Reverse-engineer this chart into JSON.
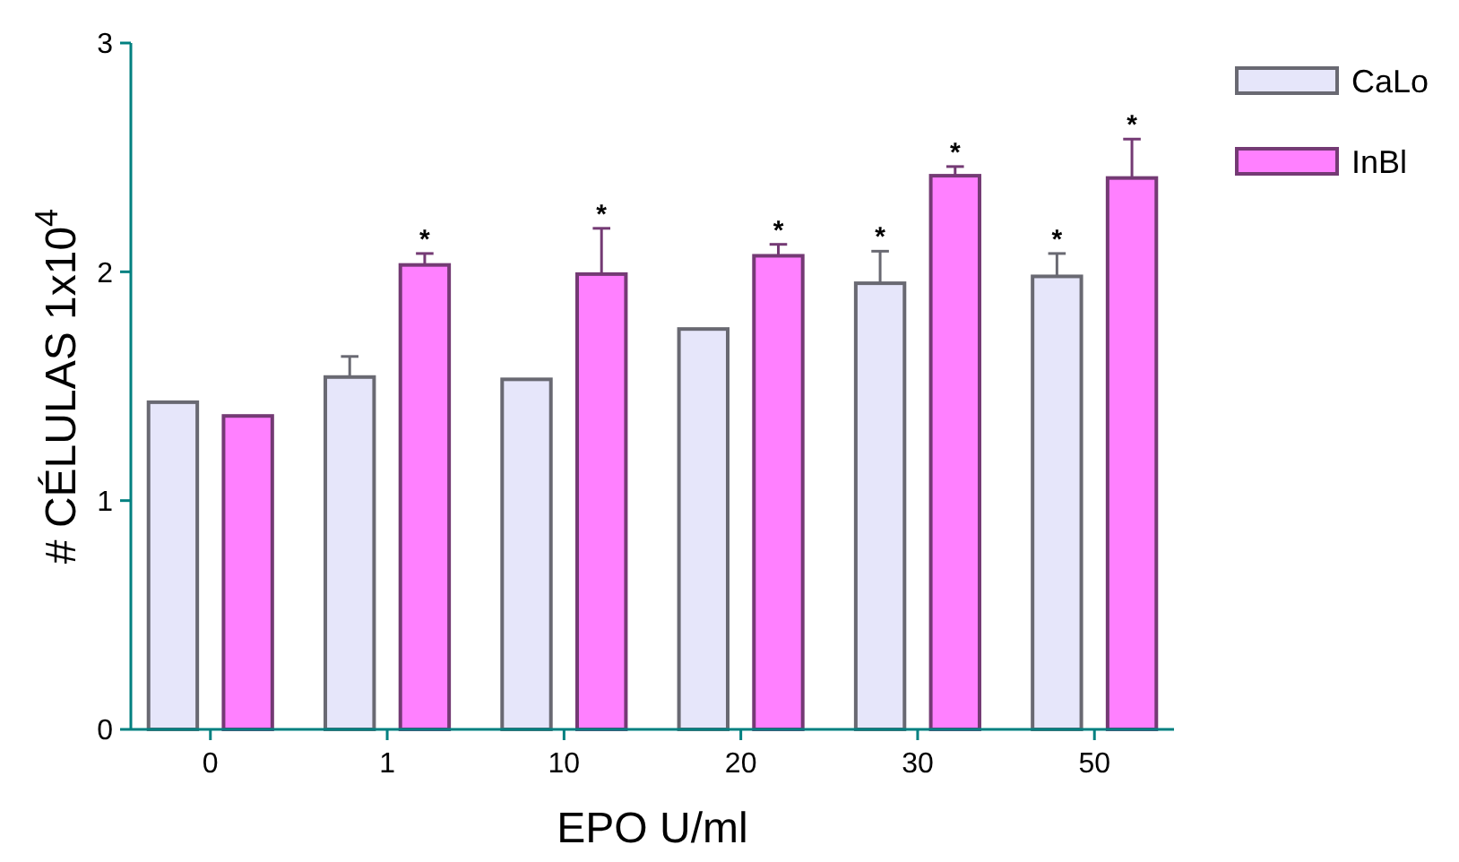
{
  "chart_data": {
    "type": "bar",
    "xlabel": "EPO U/ml",
    "ylabel": "# CÉLULAS 1x10$^{4}$",
    "categories": [
      "0",
      "1",
      "10",
      "20",
      "30",
      "50"
    ],
    "series": [
      {
        "name": "CaLo",
        "color": "#e6e6fa",
        "values": [
          1.43,
          1.54,
          1.53,
          1.75,
          1.95,
          1.98
        ],
        "errors": [
          null,
          [
            1.54,
            1.63
          ],
          null,
          null,
          [
            1.95,
            2.09
          ],
          [
            1.98,
            2.08
          ]
        ],
        "value_labels": [
          null,
          null,
          null,
          null,
          "*",
          "*"
        ]
      },
      {
        "name": "InBl",
        "color": "#ff80ff",
        "values": [
          1.37,
          2.03,
          1.99,
          2.07,
          2.42,
          2.41
        ],
        "errors": [
          null,
          [
            2.03,
            2.08
          ],
          [
            1.99,
            2.19
          ],
          [
            2.07,
            2.12
          ],
          [
            2.42,
            2.46
          ],
          [
            2.41,
            2.58
          ]
        ],
        "value_labels": [
          null,
          "*",
          "*",
          "*",
          "*",
          "*"
        ]
      }
    ],
    "ylim": [
      0,
      3
    ],
    "yticks": [
      0,
      1,
      2,
      3
    ],
    "grid": false,
    "legend": "top right"
  }
}
